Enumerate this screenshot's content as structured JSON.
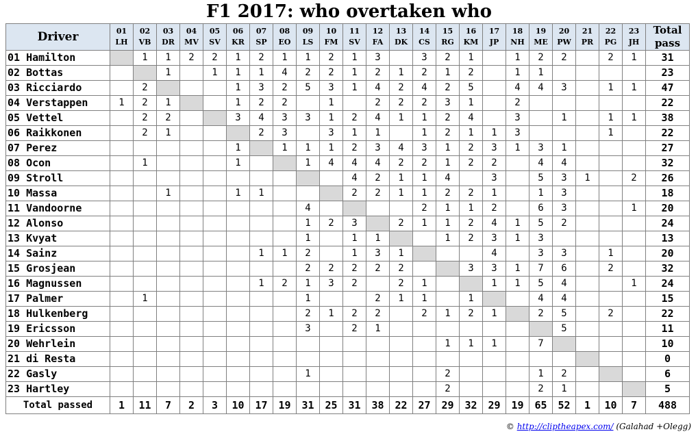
{
  "title": "F1 2017: who overtaken who",
  "header": {
    "driver_label": "Driver",
    "total_label_1": "Total",
    "total_label_2": "pass"
  },
  "chart_data": {
    "type": "table",
    "title": "F1 2017: who overtaken who",
    "column_codes": [
      {
        "num": "01",
        "abbr": "LH"
      },
      {
        "num": "02",
        "abbr": "VB"
      },
      {
        "num": "03",
        "abbr": "DR"
      },
      {
        "num": "04",
        "abbr": "MV"
      },
      {
        "num": "05",
        "abbr": "SV"
      },
      {
        "num": "06",
        "abbr": "KR"
      },
      {
        "num": "07",
        "abbr": "SP"
      },
      {
        "num": "08",
        "abbr": "EO"
      },
      {
        "num": "09",
        "abbr": "LS"
      },
      {
        "num": "10",
        "abbr": "FM"
      },
      {
        "num": "11",
        "abbr": "SV"
      },
      {
        "num": "12",
        "abbr": "FA"
      },
      {
        "num": "13",
        "abbr": "DK"
      },
      {
        "num": "14",
        "abbr": "CS"
      },
      {
        "num": "15",
        "abbr": "RG"
      },
      {
        "num": "16",
        "abbr": "KM"
      },
      {
        "num": "17",
        "abbr": "JP"
      },
      {
        "num": "18",
        "abbr": "NH"
      },
      {
        "num": "19",
        "abbr": "ME"
      },
      {
        "num": "20",
        "abbr": "PW"
      },
      {
        "num": "21",
        "abbr": "PR"
      },
      {
        "num": "22",
        "abbr": "PG"
      },
      {
        "num": "23",
        "abbr": "JH"
      }
    ],
    "rows": [
      {
        "driver": "01 Hamilton",
        "cells": [
          null,
          1,
          1,
          2,
          2,
          1,
          2,
          1,
          1,
          2,
          1,
          3,
          null,
          3,
          2,
          1,
          null,
          1,
          2,
          2,
          null,
          2,
          1
        ],
        "total": 31
      },
      {
        "driver": "02 Bottas",
        "cells": [
          null,
          null,
          1,
          null,
          1,
          1,
          1,
          4,
          2,
          2,
          1,
          2,
          1,
          2,
          1,
          2,
          null,
          1,
          1,
          null,
          null,
          null,
          null
        ],
        "total": 23
      },
      {
        "driver": "03 Ricciardo",
        "cells": [
          null,
          2,
          null,
          null,
          null,
          1,
          3,
          2,
          5,
          3,
          1,
          4,
          2,
          4,
          2,
          5,
          null,
          4,
          4,
          3,
          null,
          1,
          1
        ],
        "total": 47
      },
      {
        "driver": "04 Verstappen",
        "cells": [
          1,
          2,
          1,
          null,
          null,
          1,
          2,
          2,
          null,
          1,
          null,
          2,
          2,
          2,
          3,
          1,
          null,
          2,
          null,
          null,
          null,
          null,
          null
        ],
        "total": 22
      },
      {
        "driver": "05 Vettel",
        "cells": [
          null,
          2,
          2,
          null,
          null,
          3,
          4,
          3,
          3,
          1,
          2,
          4,
          1,
          1,
          2,
          4,
          null,
          3,
          null,
          1,
          null,
          1,
          1
        ],
        "total": 38
      },
      {
        "driver": "06 Raikkonen",
        "cells": [
          null,
          2,
          1,
          null,
          null,
          null,
          2,
          3,
          null,
          3,
          1,
          1,
          null,
          1,
          2,
          1,
          1,
          3,
          null,
          null,
          null,
          1,
          null
        ],
        "total": 22
      },
      {
        "driver": "07 Perez",
        "cells": [
          null,
          null,
          null,
          null,
          null,
          1,
          null,
          1,
          1,
          1,
          2,
          3,
          4,
          3,
          1,
          2,
          3,
          1,
          3,
          1,
          null,
          null,
          null
        ],
        "total": 27
      },
      {
        "driver": "08 Ocon",
        "cells": [
          null,
          1,
          null,
          null,
          null,
          1,
          null,
          null,
          1,
          4,
          4,
          4,
          2,
          2,
          1,
          2,
          2,
          null,
          4,
          4,
          null,
          null,
          null
        ],
        "total": 32
      },
      {
        "driver": "09 Stroll",
        "cells": [
          null,
          null,
          null,
          null,
          null,
          null,
          null,
          null,
          null,
          null,
          4,
          2,
          1,
          1,
          4,
          null,
          3,
          null,
          5,
          3,
          1,
          null,
          2
        ],
        "total": 26
      },
      {
        "driver": "10 Massa",
        "cells": [
          null,
          null,
          1,
          null,
          null,
          1,
          1,
          null,
          null,
          null,
          2,
          2,
          1,
          1,
          2,
          2,
          1,
          null,
          1,
          3,
          null,
          null,
          null
        ],
        "total": 18
      },
      {
        "driver": "11 Vandoorne",
        "cells": [
          null,
          null,
          null,
          null,
          null,
          null,
          null,
          null,
          4,
          null,
          null,
          null,
          null,
          2,
          1,
          1,
          2,
          null,
          6,
          3,
          null,
          null,
          1
        ],
        "total": 20
      },
      {
        "driver": "12 Alonso",
        "cells": [
          null,
          null,
          null,
          null,
          null,
          null,
          null,
          null,
          1,
          2,
          3,
          null,
          2,
          1,
          1,
          2,
          4,
          1,
          5,
          2,
          null,
          null,
          null
        ],
        "total": 24
      },
      {
        "driver": "13 Kvyat",
        "cells": [
          null,
          null,
          null,
          null,
          null,
          null,
          null,
          null,
          1,
          null,
          1,
          1,
          null,
          null,
          1,
          2,
          3,
          1,
          3,
          null,
          null,
          null,
          null
        ],
        "total": 13
      },
      {
        "driver": "14 Sainz",
        "cells": [
          null,
          null,
          null,
          null,
          null,
          null,
          1,
          1,
          2,
          null,
          1,
          3,
          1,
          null,
          null,
          null,
          4,
          null,
          3,
          3,
          null,
          1,
          null
        ],
        "total": 20
      },
      {
        "driver": "15 Grosjean",
        "cells": [
          null,
          null,
          null,
          null,
          null,
          null,
          null,
          null,
          2,
          2,
          2,
          2,
          2,
          null,
          null,
          3,
          3,
          1,
          7,
          6,
          null,
          2,
          null
        ],
        "total": 32
      },
      {
        "driver": "16 Magnussen",
        "cells": [
          null,
          null,
          null,
          null,
          null,
          null,
          1,
          2,
          1,
          3,
          2,
          null,
          2,
          1,
          null,
          null,
          1,
          1,
          5,
          4,
          null,
          null,
          1
        ],
        "total": 24
      },
      {
        "driver": "17 Palmer",
        "cells": [
          null,
          1,
          null,
          null,
          null,
          null,
          null,
          null,
          1,
          null,
          null,
          2,
          1,
          1,
          null,
          1,
          null,
          null,
          4,
          4,
          null,
          null,
          null
        ],
        "total": 15
      },
      {
        "driver": "18 Hulkenberg",
        "cells": [
          null,
          null,
          null,
          null,
          null,
          null,
          null,
          null,
          2,
          1,
          2,
          2,
          null,
          2,
          1,
          2,
          1,
          null,
          2,
          5,
          null,
          2,
          null
        ],
        "total": 22
      },
      {
        "driver": "19 Ericsson",
        "cells": [
          null,
          null,
          null,
          null,
          null,
          null,
          null,
          null,
          3,
          null,
          2,
          1,
          null,
          null,
          null,
          null,
          null,
          null,
          null,
          5,
          null,
          null,
          null
        ],
        "total": 11
      },
      {
        "driver": "20 Wehrlein",
        "cells": [
          null,
          null,
          null,
          null,
          null,
          null,
          null,
          null,
          null,
          null,
          null,
          null,
          null,
          null,
          1,
          1,
          1,
          null,
          7,
          null,
          null,
          null,
          null
        ],
        "total": 10
      },
      {
        "driver": "21 di Resta",
        "cells": [
          null,
          null,
          null,
          null,
          null,
          null,
          null,
          null,
          null,
          null,
          null,
          null,
          null,
          null,
          null,
          null,
          null,
          null,
          null,
          null,
          null,
          null,
          null
        ],
        "total": 0
      },
      {
        "driver": "22 Gasly",
        "cells": [
          null,
          null,
          null,
          null,
          null,
          null,
          null,
          null,
          1,
          null,
          null,
          null,
          null,
          null,
          2,
          null,
          null,
          null,
          1,
          2,
          null,
          null,
          null
        ],
        "total": 6
      },
      {
        "driver": "23 Hartley",
        "cells": [
          null,
          null,
          null,
          null,
          null,
          null,
          null,
          null,
          null,
          null,
          null,
          null,
          null,
          null,
          2,
          null,
          null,
          null,
          2,
          1,
          null,
          null,
          null
        ],
        "total": 5
      }
    ],
    "footer_label": "Total passed",
    "column_totals": [
      1,
      11,
      7,
      2,
      3,
      10,
      17,
      19,
      31,
      25,
      31,
      38,
      22,
      27,
      29,
      32,
      29,
      19,
      65,
      52,
      1,
      10,
      7
    ],
    "grand_total": 488
  },
  "credit": {
    "copyright": "©",
    "link_text": "http://cliptheapex.com/",
    "authors": "(Galahad +Olegg)"
  },
  "colors": {
    "header_bg": "#dce6f1",
    "diagonal_bg": "#d9d9d9",
    "border": "#7f7f7f"
  }
}
